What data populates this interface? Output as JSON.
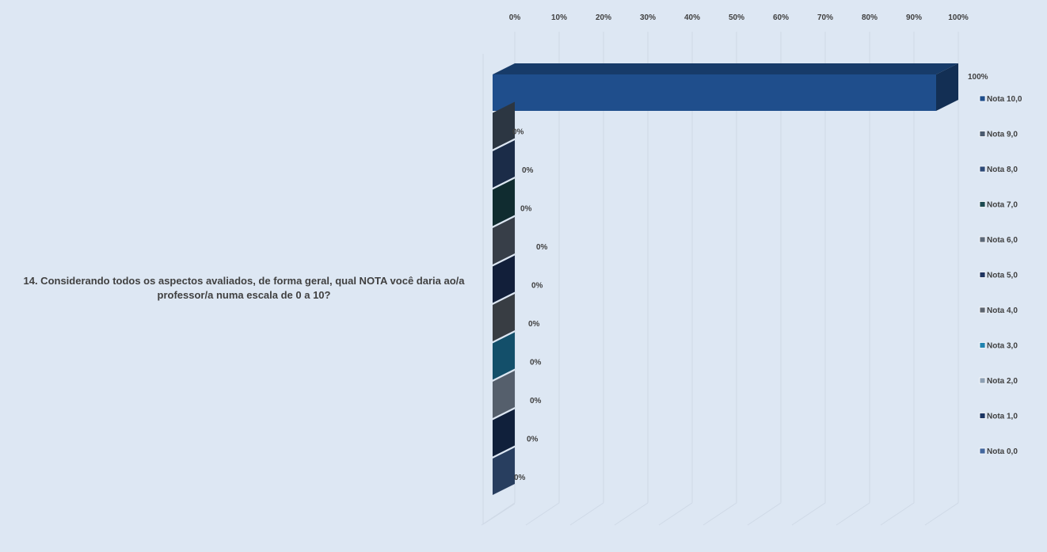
{
  "chart_data": {
    "type": "bar",
    "orientation": "horizontal",
    "style": "3d-clustered",
    "title": "",
    "category_label": "14. Considerando todos os aspectos avaliados, de forma geral, qual NOTA você daria ao/a professor/a numa escala de 0 a 10?",
    "x_range": [
      0,
      100
    ],
    "x_ticks": [
      "0%",
      "10%",
      "20%",
      "30%",
      "40%",
      "50%",
      "60%",
      "70%",
      "80%",
      "90%",
      "100%"
    ],
    "gridlines": true,
    "legend_position": "right",
    "series": [
      {
        "name": "Nota 10,0",
        "value": 100,
        "label": "100%",
        "color": "#1f4e8c"
      },
      {
        "name": "Nota 9,0",
        "value": 0,
        "label": "0%",
        "color": "#4a5a6e"
      },
      {
        "name": "Nota 8,0",
        "value": 0,
        "label": "0%",
        "color": "#2d4a78"
      },
      {
        "name": "Nota 7,0",
        "value": 0,
        "label": "0%",
        "color": "#1b4950"
      },
      {
        "name": "Nota 6,0",
        "value": 0,
        "label": "0%",
        "color": "#5c6878"
      },
      {
        "name": "Nota 5,0",
        "value": 0,
        "label": "0%",
        "color": "#1e3460"
      },
      {
        "name": "Nota 4,0",
        "value": 0,
        "label": "0%",
        "color": "#5d6570"
      },
      {
        "name": "Nota 3,0",
        "value": 0,
        "label": "0%",
        "color": "#1f83b0"
      },
      {
        "name": "Nota 2,0",
        "value": 0,
        "label": "0%",
        "color": "#8d9fb4"
      },
      {
        "name": "Nota 1,0",
        "value": 0,
        "label": "0%",
        "color": "#1a3563"
      },
      {
        "name": "Nota 0,0",
        "value": 0,
        "label": "0%",
        "color": "#43679e"
      }
    ]
  }
}
